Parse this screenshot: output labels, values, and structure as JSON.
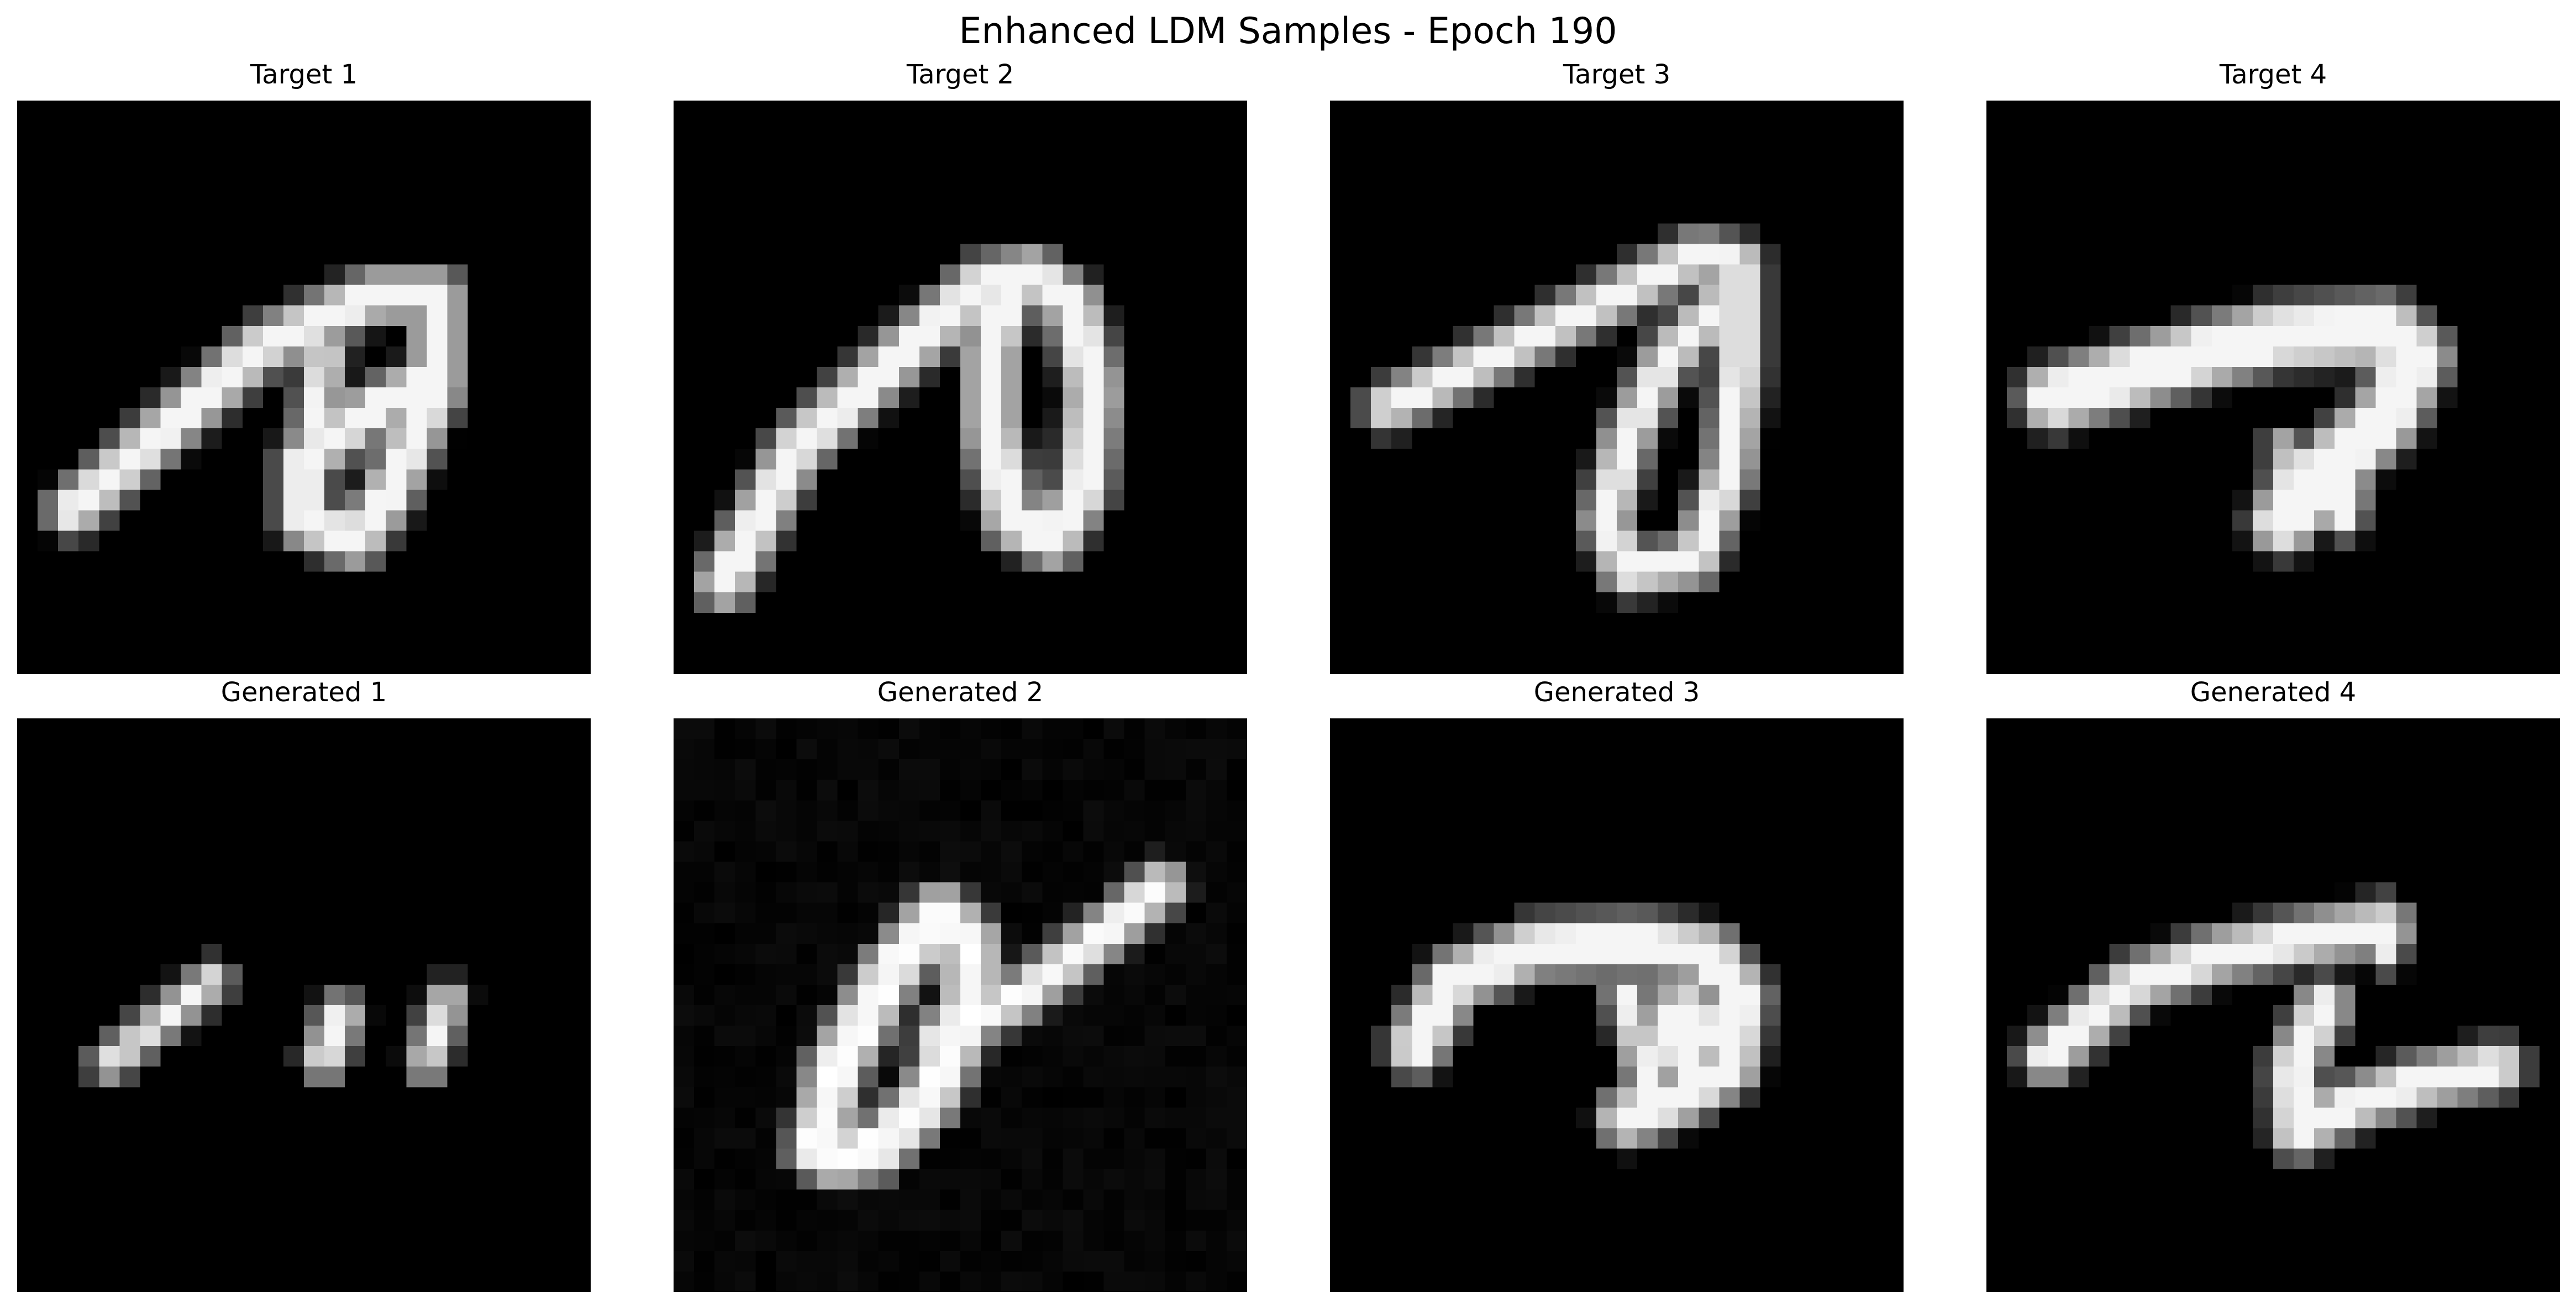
{
  "title": "Enhanced LDM Samples - Epoch 190",
  "rows": [
    {
      "role": "target",
      "panels": [
        {
          "label": "Target 1"
        },
        {
          "label": "Target 2"
        },
        {
          "label": "Target 3"
        },
        {
          "label": "Target 4"
        }
      ]
    },
    {
      "role": "generated",
      "panels": [
        {
          "label": "Generated 1"
        },
        {
          "label": "Generated 2"
        },
        {
          "label": "Generated 3"
        },
        {
          "label": "Generated 4"
        }
      ]
    }
  ],
  "image": {
    "colormap": "grayscale",
    "grid_cells": 28,
    "background_color": "#000000",
    "content": "handwritten digit strokes (MNIST-style)"
  }
}
